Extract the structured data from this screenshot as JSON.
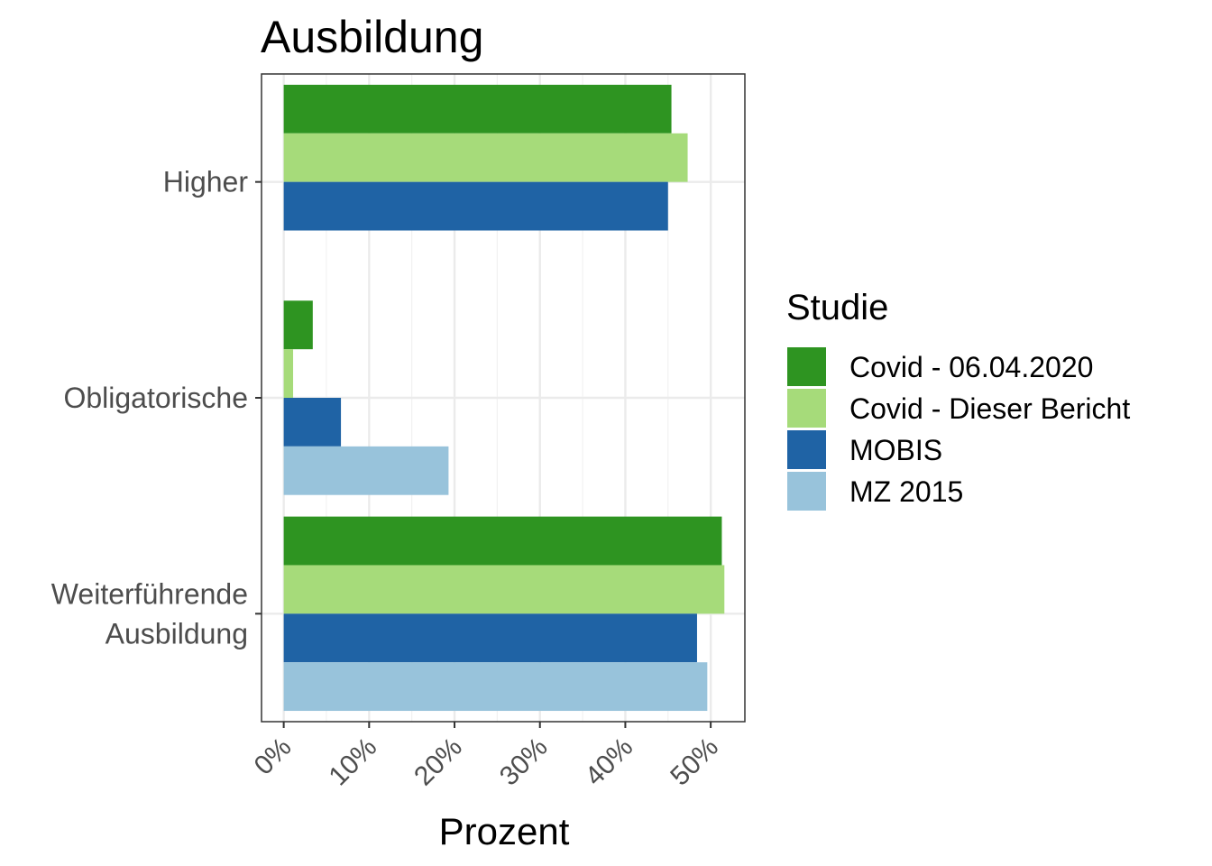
{
  "chart_data": {
    "type": "bar",
    "orientation": "horizontal",
    "title": "Ausbildung",
    "xlabel": "Prozent",
    "ylabel": "",
    "xlim": [
      -2.6,
      54.0
    ],
    "x_ticks": [
      0,
      10,
      20,
      30,
      40,
      50
    ],
    "x_tick_labels": [
      "0%",
      "10%",
      "20%",
      "30%",
      "40%",
      "50%"
    ],
    "categories": [
      {
        "label": [
          "Higher"
        ]
      },
      {
        "label": [
          "Obligatorische"
        ]
      },
      {
        "label": [
          "Weiterführende",
          "Ausbildung"
        ]
      }
    ],
    "series": [
      {
        "name": "Covid - 06.04.2020",
        "color": "#2e9421",
        "values": [
          45.4,
          3.4,
          51.3
        ]
      },
      {
        "name": "Covid - Dieser Bericht",
        "color": "#a6db7a",
        "values": [
          47.3,
          1.1,
          51.6
        ]
      },
      {
        "name": "MOBIS",
        "color": "#1f63a5",
        "values": [
          45.0,
          6.7,
          48.4
        ]
      },
      {
        "name": "MZ 2015",
        "color": "#98c3db",
        "values": [
          null,
          19.3,
          49.6
        ]
      }
    ],
    "legend": {
      "title": "Studie",
      "position": "right"
    },
    "grid": true
  }
}
